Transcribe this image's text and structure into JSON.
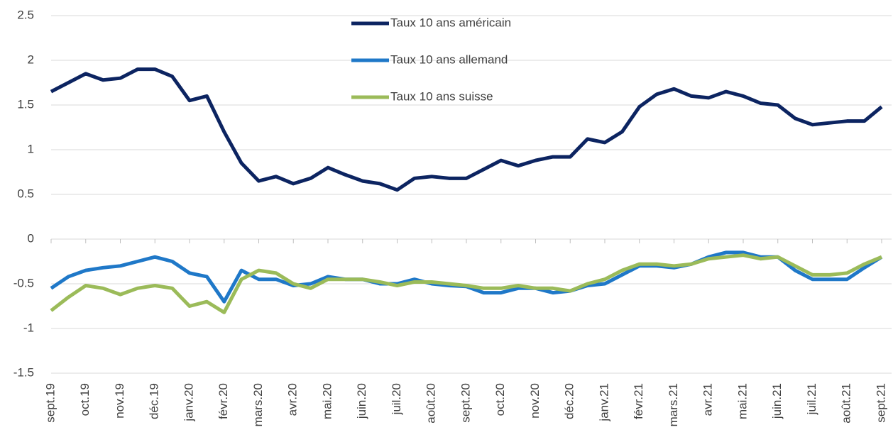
{
  "chart_data": {
    "type": "line",
    "categories": [
      "sept.19",
      null,
      "oct.19",
      null,
      "nov.19",
      null,
      "déc.19",
      null,
      "janv.20",
      null,
      "févr.20",
      null,
      "mars.20",
      null,
      "avr.20",
      null,
      "mai.20",
      null,
      "juin.20",
      null,
      "juil.20",
      null,
      "août.20",
      null,
      "sept.20",
      null,
      "oct.20",
      null,
      "nov.20",
      null,
      "déc.20",
      null,
      "janv.21",
      null,
      "févr.21",
      null,
      "mars.21",
      null,
      "avr.21",
      null,
      "mai.21",
      null,
      "juin.21",
      null,
      "juil.21",
      null,
      "août.21",
      null,
      "sept.21"
    ],
    "series": [
      {
        "name": "Taux 10 ans américain",
        "color": "#0c2461",
        "values": [
          1.65,
          1.75,
          1.85,
          1.78,
          1.8,
          1.9,
          1.9,
          1.82,
          1.55,
          1.6,
          1.2,
          0.85,
          0.65,
          0.7,
          0.62,
          0.68,
          0.8,
          0.72,
          0.65,
          0.62,
          0.55,
          0.68,
          0.7,
          0.68,
          0.68,
          0.78,
          0.88,
          0.82,
          0.88,
          0.92,
          0.92,
          1.12,
          1.08,
          1.2,
          1.48,
          1.62,
          1.68,
          1.6,
          1.58,
          1.65,
          1.6,
          1.52,
          1.5,
          1.35,
          1.28,
          1.3,
          1.32,
          1.32,
          1.48
        ]
      },
      {
        "name": "Taux 10 ans allemand",
        "color": "#1f78c8",
        "values": [
          -0.55,
          -0.42,
          -0.35,
          -0.32,
          -0.3,
          -0.25,
          -0.2,
          -0.25,
          -0.38,
          -0.42,
          -0.7,
          -0.35,
          -0.45,
          -0.45,
          -0.52,
          -0.5,
          -0.42,
          -0.45,
          -0.45,
          -0.5,
          -0.5,
          -0.45,
          -0.5,
          -0.52,
          -0.53,
          -0.6,
          -0.6,
          -0.55,
          -0.55,
          -0.6,
          -0.58,
          -0.52,
          -0.5,
          -0.4,
          -0.3,
          -0.3,
          -0.32,
          -0.28,
          -0.2,
          -0.15,
          -0.15,
          -0.2,
          -0.2,
          -0.35,
          -0.45,
          -0.45,
          -0.45,
          -0.32,
          -0.2
        ]
      },
      {
        "name": "Taux 10 ans suisse",
        "color": "#9bbb59",
        "values": [
          -0.8,
          -0.65,
          -0.52,
          -0.55,
          -0.62,
          -0.55,
          -0.52,
          -0.55,
          -0.75,
          -0.7,
          -0.82,
          -0.45,
          -0.35,
          -0.38,
          -0.5,
          -0.55,
          -0.45,
          -0.45,
          -0.45,
          -0.48,
          -0.52,
          -0.48,
          -0.48,
          -0.5,
          -0.52,
          -0.55,
          -0.55,
          -0.52,
          -0.55,
          -0.55,
          -0.58,
          -0.5,
          -0.45,
          -0.35,
          -0.28,
          -0.28,
          -0.3,
          -0.28,
          -0.22,
          -0.2,
          -0.18,
          -0.22,
          -0.2,
          -0.3,
          -0.4,
          -0.4,
          -0.38,
          -0.28,
          -0.2
        ]
      }
    ],
    "ylim": [
      -1.5,
      2.5
    ],
    "yticks": [
      -1.5,
      -1,
      -0.5,
      0,
      0.5,
      1,
      1.5,
      2,
      2.5
    ],
    "grid": true
  }
}
